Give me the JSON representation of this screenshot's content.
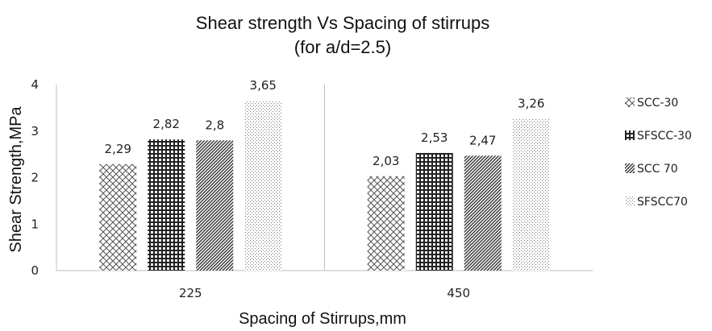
{
  "chart_data": {
    "type": "bar",
    "title": "Shear strength Vs Spacing of stirrups",
    "subtitle": "(for a/d=2.5)",
    "xlabel": "Spacing of Stirrups,mm",
    "ylabel": "Shear Strength,MPa",
    "categories": [
      "225",
      "450"
    ],
    "ylim": [
      0,
      4
    ],
    "yticks": [
      "0",
      "1",
      "2",
      "3",
      "4"
    ],
    "legend_position": "right",
    "series": [
      {
        "name": "SCC-30",
        "values": [
          2.29,
          2.03
        ],
        "labels": [
          "2,29",
          "2,03"
        ],
        "pattern": "crosshatch-diagonal",
        "color": "#555555"
      },
      {
        "name": "SFSCC-30",
        "values": [
          2.82,
          2.53
        ],
        "labels": [
          "2,82",
          "2,53"
        ],
        "pattern": "checker-grid",
        "color": "#222222"
      },
      {
        "name": "SCC 70",
        "values": [
          2.8,
          2.47
        ],
        "labels": [
          "2,8",
          "2,47"
        ],
        "pattern": "dense-diagonal",
        "color": "#333333"
      },
      {
        "name": "SFSCC70",
        "values": [
          3.65,
          3.26
        ],
        "labels": [
          "3,65",
          "3,26"
        ],
        "pattern": "fine-dots",
        "color": "#777777"
      }
    ]
  }
}
